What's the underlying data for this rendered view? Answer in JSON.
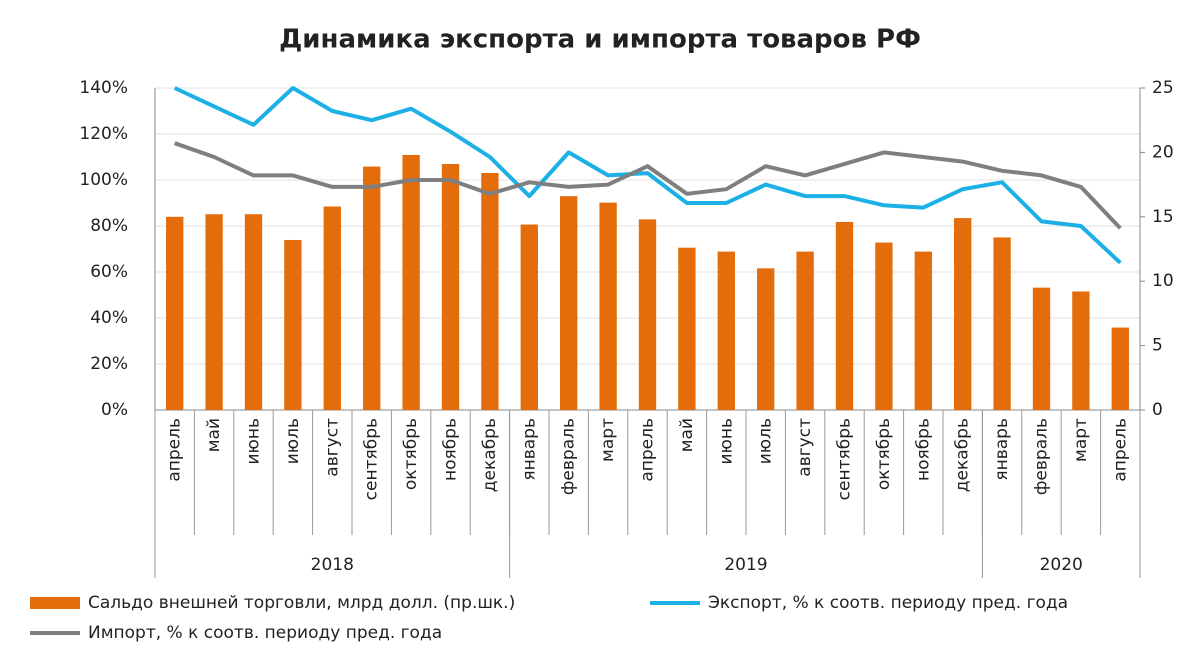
{
  "chart_data": {
    "type": "bar_line",
    "title": "Динамика экспорта и импорта товаров РФ",
    "categories": [
      "апрель",
      "май",
      "июнь",
      "июль",
      "август",
      "сентябрь",
      "октябрь",
      "ноябрь",
      "декабрь",
      "январь",
      "февраль",
      "март",
      "апрель",
      "май",
      "июнь",
      "июль",
      "август",
      "сентябрь",
      "октябрь",
      "ноябрь",
      "декабрь",
      "январь",
      "февраль",
      "март",
      "апрель"
    ],
    "x_groups": [
      {
        "label": "2018",
        "span": 9
      },
      {
        "label": "2019",
        "span": 12
      },
      {
        "label": "2020",
        "span": 4
      }
    ],
    "series": [
      {
        "name": "Сальдо внешней торговли, млрд долл. (пр.шк.)",
        "type": "bar",
        "axis": "y2",
        "color": "#e46c0a",
        "values": [
          15.0,
          15.2,
          15.2,
          13.2,
          15.8,
          18.9,
          19.8,
          19.1,
          18.4,
          14.4,
          16.6,
          16.1,
          14.8,
          12.6,
          12.3,
          11.0,
          12.3,
          14.6,
          13.0,
          12.3,
          14.9,
          13.4,
          9.5,
          9.2,
          6.4
        ]
      },
      {
        "name": "Экспорт, % к соотв. периоду пред. года",
        "type": "line",
        "color": "#1cb0e6",
        "values": [
          140,
          132,
          124,
          140,
          130,
          126,
          131,
          121,
          110,
          93,
          112,
          102,
          103,
          90,
          90,
          98,
          93,
          93,
          89,
          88,
          96,
          99,
          82,
          80,
          64
        ]
      },
      {
        "name": "Импорт, % к соотв. периоду пред. года",
        "type": "line",
        "color": "#7f7f7f",
        "values": [
          116,
          110,
          102,
          102,
          97,
          97,
          100,
          100,
          94,
          99,
          97,
          98,
          106,
          94,
          96,
          106,
          102,
          107,
          112,
          110,
          108,
          104,
          102,
          97,
          79
        ]
      }
    ],
    "ylim": [
      0,
      140
    ],
    "yticks": [
      {
        "value": 0,
        "label": "0%"
      },
      {
        "value": 20,
        "label": "20%"
      },
      {
        "value": 40,
        "label": "40%"
      },
      {
        "value": 60,
        "label": "60%"
      },
      {
        "value": 80,
        "label": "80%"
      },
      {
        "value": 100,
        "label": "100%"
      },
      {
        "value": 120,
        "label": "120%"
      },
      {
        "value": 140,
        "label": "140%"
      }
    ],
    "y2lim": [
      0,
      25
    ],
    "y2ticks": [
      0,
      5,
      10,
      15,
      20,
      25
    ],
    "grid": true
  }
}
